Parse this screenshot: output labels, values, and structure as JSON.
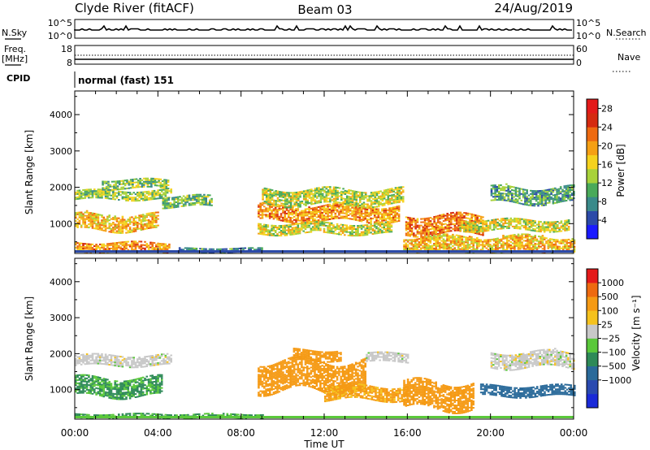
{
  "header": {
    "station": "Clyde River (fitACF)",
    "beam": "Beam 03",
    "date": "24/Aug/2019"
  },
  "strips": {
    "nsky": {
      "label": "N.Sky",
      "ticks_left": [
        "10^5",
        "10^0"
      ],
      "right_label": "N.Search",
      "ticks_right": [
        "10^5",
        "10^0"
      ]
    },
    "freq": {
      "label_line1": "Freq.",
      "label_line2": "[MHz]",
      "ticks_left": [
        "18",
        "8"
      ],
      "right_label": "Nave",
      "ticks_right": [
        "60",
        "0"
      ]
    },
    "cpid": {
      "label": "CPID",
      "text": "normal (fast) 151"
    }
  },
  "chart_data": [
    {
      "type": "heatmap",
      "panel": "power",
      "xlabel": "",
      "ylabel": "Slant Range [km]",
      "x_ticks": [
        "00:00",
        "04:00",
        "08:00",
        "12:00",
        "16:00",
        "20:00",
        "00:00"
      ],
      "x_range_hours": [
        0,
        24
      ],
      "y_ticks": [
        1000,
        2000,
        3000,
        4000
      ],
      "ylim": [
        180,
        4650
      ],
      "colorbar": {
        "label": "Power [dB]",
        "ticks": [
          4,
          8,
          12,
          16,
          20,
          24,
          28
        ],
        "range": [
          0,
          30
        ],
        "colors": [
          "#1a1aff",
          "#2c4aa8",
          "#3a8a8a",
          "#4aaa5a",
          "#a8d23a",
          "#f5d21e",
          "#f5a014",
          "#ee6a10",
          "#d52a10",
          "#e41a1a"
        ]
      },
      "echo_bands": [
        {
          "t0": 0.0,
          "t1": 4.6,
          "r0": 1650,
          "r1": 1900,
          "value": 13
        },
        {
          "t0": 0.0,
          "t1": 4.0,
          "r0": 800,
          "r1": 1250,
          "value": 18
        },
        {
          "t0": 1.3,
          "t1": 4.5,
          "r0": 1950,
          "r1": 2200,
          "value": 12
        },
        {
          "t0": 0.0,
          "t1": 4.5,
          "r0": 220,
          "r1": 450,
          "value": 20
        },
        {
          "t0": 4.2,
          "t1": 6.6,
          "r0": 1450,
          "r1": 1750,
          "value": 11
        },
        {
          "t0": 8.8,
          "t1": 15.6,
          "r0": 1050,
          "r1": 1500,
          "value": 20
        },
        {
          "t0": 9.0,
          "t1": 15.8,
          "r0": 1500,
          "r1": 1950,
          "value": 14
        },
        {
          "t0": 8.8,
          "t1": 15.2,
          "r0": 700,
          "r1": 1000,
          "value": 15
        },
        {
          "t0": 15.9,
          "t1": 19.6,
          "r0": 700,
          "r1": 1200,
          "value": 22
        },
        {
          "t0": 15.8,
          "t1": 24.0,
          "r0": 200,
          "r1": 650,
          "value": 18
        },
        {
          "t0": 18.5,
          "t1": 23.8,
          "r0": 800,
          "r1": 1100,
          "value": 15
        },
        {
          "t0": 20.0,
          "t1": 24.0,
          "r0": 1550,
          "r1": 2000,
          "value": 10
        },
        {
          "t0": 5.0,
          "t1": 9.0,
          "r0": 200,
          "r1": 300,
          "value": 8
        }
      ]
    },
    {
      "type": "heatmap",
      "panel": "velocity",
      "xlabel": "Time UT",
      "ylabel": "Slant Range [km]",
      "x_ticks": [
        "00:00",
        "04:00",
        "08:00",
        "12:00",
        "16:00",
        "20:00",
        "00:00"
      ],
      "x_range_hours": [
        0,
        24
      ],
      "y_ticks": [
        1000,
        2000,
        3000,
        4000
      ],
      "ylim": [
        180,
        4650
      ],
      "colorbar": {
        "label": "Velocity [m s⁻¹]",
        "ticks": [
          "1000",
          "500",
          "100",
          "25",
          "−25",
          "−100",
          "−500",
          "−1000"
        ],
        "colors": [
          "#1a2ad8",
          "#2a4ab0",
          "#2a6a9a",
          "#2e8a58",
          "#5ac83a",
          "#c8c8c8",
          "#f5c21e",
          "#f59a14",
          "#ee6a10",
          "#e41a1a"
        ]
      },
      "echo_bands": [
        {
          "t0": 0.0,
          "t1": 4.6,
          "r0": 1650,
          "r1": 1950,
          "value": 0
        },
        {
          "t0": 0.0,
          "t1": 4.2,
          "r0": 800,
          "r1": 1300,
          "value": 60
        },
        {
          "t0": 8.8,
          "t1": 14.0,
          "r0": 950,
          "r1": 1800,
          "value": -300
        },
        {
          "t0": 10.5,
          "t1": 12.8,
          "r0": 1800,
          "r1": 2100,
          "value": -300
        },
        {
          "t0": 12.0,
          "t1": 16.0,
          "r0": 700,
          "r1": 1100,
          "value": -120
        },
        {
          "t0": 15.8,
          "t1": 19.2,
          "r0": 450,
          "r1": 1200,
          "value": -300
        },
        {
          "t0": 19.5,
          "t1": 24.0,
          "r0": 800,
          "r1": 1100,
          "value": 200
        },
        {
          "t0": 20.0,
          "t1": 24.0,
          "r0": 1600,
          "r1": 2050,
          "value": 0
        },
        {
          "t0": 14.0,
          "t1": 16.0,
          "r0": 1750,
          "r1": 2000,
          "value": 0
        },
        {
          "t0": 0.0,
          "t1": 9.0,
          "r0": 200,
          "r1": 330,
          "value": 60
        }
      ]
    }
  ],
  "x_axis": {
    "label": "Time UT",
    "ticks": [
      "00:00",
      "04:00",
      "08:00",
      "12:00",
      "16:00",
      "20:00",
      "00:00"
    ]
  }
}
